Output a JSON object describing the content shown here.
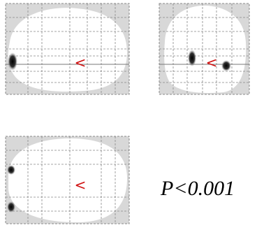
{
  "panels": [
    {
      "marker": "<"
    },
    {
      "marker": "<"
    },
    {
      "marker": "<"
    }
  ],
  "threshold": "P<0.001"
}
